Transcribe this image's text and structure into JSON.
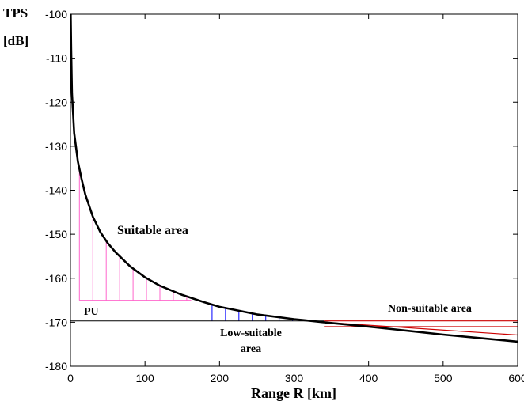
{
  "chart_data": {
    "type": "line",
    "ylabel_top": "TPS",
    "ylabel_unit": "[dB]",
    "xlabel": "Range R [km]",
    "xlim": [
      0,
      600
    ],
    "ylim": [
      -180,
      -100
    ],
    "xticks": [
      0,
      100,
      200,
      300,
      400,
      500,
      600
    ],
    "yticks": [
      -180,
      -170,
      -160,
      -150,
      -140,
      -130,
      -120,
      -110,
      -100
    ],
    "ytick_labels": [
      "-180",
      "-170",
      "-160",
      "-150",
      "-140",
      "-130",
      "-120",
      "-110",
      "-100"
    ],
    "xtick_labels": [
      "0",
      "100",
      "200",
      "300",
      "400",
      "500",
      "600"
    ],
    "grid": false,
    "series": [
      {
        "color": "#000000",
        "x": [
          0.3,
          1,
          2,
          5,
          10,
          15,
          20,
          30,
          40,
          50,
          60,
          80,
          100,
          120,
          150,
          180,
          200,
          250,
          300,
          340,
          400,
          450,
          500,
          550,
          600
        ],
        "y": [
          -100,
          -108,
          -118,
          -127,
          -133.5,
          -137.5,
          -141,
          -146,
          -149.5,
          -152,
          -154,
          -157.3,
          -159.8,
          -161.7,
          -163.8,
          -165.5,
          -166.5,
          -168.2,
          -169.3,
          -170,
          -171,
          -171.9,
          -172.8,
          -173.6,
          -174.4
        ]
      }
    ],
    "reference_lines": {
      "pu_level": -169.7,
      "suitable_level": -165,
      "upper_red_levels": [
        -169.7,
        -171
      ]
    },
    "regions": {
      "suitable": {
        "x": [
          0,
          150
        ],
        "color": "#ff66cc"
      },
      "low_suitable": {
        "x": [
          190,
          340
        ],
        "color": "#0000ff"
      },
      "non_suitable": {
        "x": [
          340,
          600
        ],
        "color": "#cc0000"
      }
    },
    "annotations": {
      "suitable": "Suitable area",
      "pu": "PU",
      "low_suitable_line1": "Low-suitable",
      "low_suitable_line2": "area",
      "non_suitable": "Non-suitable area"
    }
  }
}
